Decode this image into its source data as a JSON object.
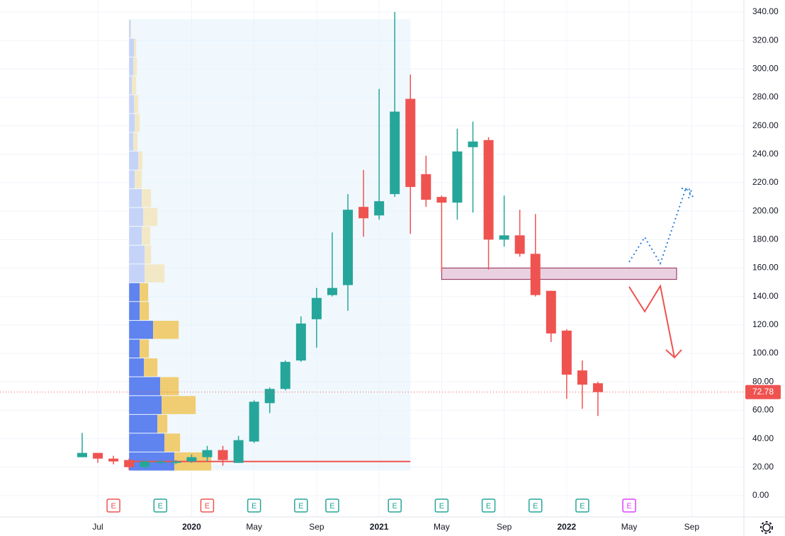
{
  "chart_data": {
    "type": "candlestick",
    "categories": [
      null,
      "Jul",
      null,
      null,
      null,
      null,
      null,
      "2020",
      null,
      null,
      null,
      "May",
      null,
      null,
      null,
      "Sep",
      null,
      null,
      null,
      "2021",
      null,
      null,
      null,
      "May",
      null,
      null,
      null,
      "Sep",
      null,
      null,
      null,
      "2022",
      null,
      null,
      null,
      "May",
      null,
      null,
      null,
      "Sep"
    ],
    "bold_categories": [
      "2020",
      "2021",
      "2022"
    ],
    "open": [
      27,
      30,
      26,
      25,
      20,
      23,
      23,
      24,
      27,
      32,
      23,
      38,
      65,
      75,
      95,
      124,
      141,
      148,
      203,
      197,
      212,
      279,
      226,
      210,
      206,
      245,
      250,
      180,
      183,
      170,
      144,
      116,
      88,
      79,
      null,
      null,
      null,
      null,
      null,
      null
    ],
    "high": [
      44,
      30,
      28,
      26,
      25,
      25,
      25,
      29,
      35,
      35,
      42,
      67,
      76,
      95,
      126,
      146,
      185,
      212,
      229,
      286,
      340,
      296,
      239,
      211,
      258,
      263,
      252,
      211,
      201,
      198,
      144,
      117,
      95,
      80,
      null,
      null,
      null,
      null,
      null,
      null
    ],
    "low": [
      27,
      23,
      22,
      18,
      19,
      22,
      22,
      23,
      24,
      21,
      23,
      37,
      58,
      74,
      94,
      104,
      140,
      130,
      182,
      194,
      210,
      184,
      203,
      157,
      194,
      199,
      159,
      175,
      168,
      140,
      108,
      68,
      61,
      56,
      null,
      null,
      null,
      null,
      null,
      null
    ],
    "close": [
      30,
      26,
      24,
      20,
      24,
      24,
      24,
      27,
      32,
      25,
      39,
      66,
      75,
      94,
      121,
      139,
      146,
      201,
      195,
      207,
      270,
      217,
      208,
      206,
      242,
      249,
      180,
      183,
      170,
      141,
      114,
      85,
      78,
      72.78,
      null,
      null,
      null,
      null,
      null,
      null
    ],
    "up_color": "#26a69a",
    "down_color": "#ef5350",
    "ylim": [
      -10,
      346
    ],
    "yticks": [
      {
        "value": 0,
        "label": "0.00"
      },
      {
        "value": 20,
        "label": "20.00"
      },
      {
        "value": 40,
        "label": "40.00"
      },
      {
        "value": 60,
        "label": "60.00"
      },
      {
        "value": 80,
        "label": "80.00"
      },
      {
        "value": 100,
        "label": "100.00"
      },
      {
        "value": 120,
        "label": "120.00"
      },
      {
        "value": 140,
        "label": "140.00"
      },
      {
        "value": 160,
        "label": "160.00"
      },
      {
        "value": 180,
        "label": "180.00"
      },
      {
        "value": 200,
        "label": "200.00"
      },
      {
        "value": 220,
        "label": "220.00"
      },
      {
        "value": 240,
        "label": "240.00"
      },
      {
        "value": 260,
        "label": "260.00"
      },
      {
        "value": 280,
        "label": "280.00"
      },
      {
        "value": 300,
        "label": "300.00"
      },
      {
        "value": 320,
        "label": "320.00"
      },
      {
        "value": 340,
        "label": "340.00"
      }
    ],
    "grid": true,
    "last_price": 72.78,
    "horizontal_line": 24,
    "zone": [
      152,
      160
    ],
    "profile_bins": [
      17.6,
      30.9,
      44.1,
      57.3,
      70.5,
      83.8,
      97,
      110.2,
      123.4,
      136.7,
      149.9,
      163.1,
      176.3,
      189.6,
      202.8,
      216,
      229.2,
      242.5,
      255.7,
      268.9,
      282.1,
      295.4,
      308.6,
      321.8,
      335
    ],
    "profile_up": [
      64,
      50,
      40,
      46,
      44,
      21,
      15,
      34,
      15,
      15,
      22,
      22,
      18,
      20,
      18,
      8,
      13,
      6,
      8,
      7,
      4,
      6,
      7,
      2
    ],
    "profile_down": [
      52,
      22,
      14,
      48,
      26,
      19,
      13,
      36,
      13,
      12,
      28,
      9,
      12,
      20,
      13,
      10,
      6,
      6,
      7,
      6,
      6,
      5,
      3,
      1
    ],
    "value_area_high": 150,
    "earnings": [
      null,
      null,
      {
        "label": "E",
        "color": "#ef5350"
      },
      null,
      null,
      {
        "label": "E",
        "color": "#26a69a"
      },
      null,
      null,
      {
        "label": "E",
        "color": "#ef5350"
      },
      null,
      null,
      {
        "label": "E",
        "color": "#26a69a"
      },
      null,
      null,
      {
        "label": "E",
        "color": "#26a69a"
      },
      null,
      {
        "label": "E",
        "color": "#26a69a"
      },
      null,
      null,
      null,
      {
        "label": "E",
        "color": "#26a69a"
      },
      null,
      null,
      {
        "label": "E",
        "color": "#26a69a"
      },
      null,
      null,
      {
        "label": "E",
        "color": "#26a69a"
      },
      null,
      null,
      {
        "label": "E",
        "color": "#26a69a"
      },
      null,
      null,
      {
        "label": "E",
        "color": "#26a69a"
      },
      null,
      null,
      {
        "label": "E",
        "color": "#e040fb"
      },
      null,
      null,
      null,
      null
    ]
  }
}
